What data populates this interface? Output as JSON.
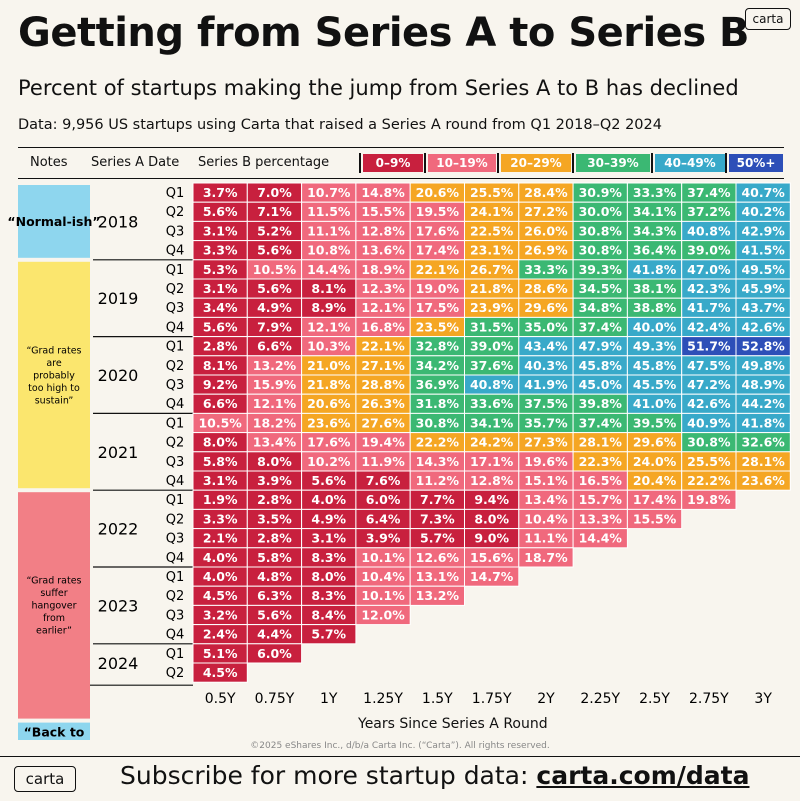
{
  "header": {
    "title": "Getting from Series A to Series B",
    "subtitle": "Percent of startups making the jump from Series A to B has declined",
    "data_note": "Data: 9,956 US startups using Carta that raised a Series A round from Q1 2018–Q2 2024",
    "logo": "carta"
  },
  "table_header": {
    "notes": "Notes",
    "series_a_date": "Series A Date",
    "series_b_percentage": "Series B percentage"
  },
  "colors": {
    "0-9": "#c8203e",
    "10-19": "#f0697d",
    "20-29": "#f5a623",
    "30-39": "#3bb873",
    "40-49": "#38a9c9",
    "50+": "#2d4fb8",
    "yellow_note": "#fbe66e",
    "blue_note": "#8ed6ee",
    "pink_note": "#f27f86"
  },
  "chart_data": {
    "type": "heatmap",
    "title": "Getting from Series A to Series B",
    "x_title": "Years Since Series A Round",
    "x_labels": [
      "0.5Y",
      "0.75Y",
      "1Y",
      "1.25Y",
      "1.5Y",
      "1.75Y",
      "2Y",
      "2.25Y",
      "2.5Y",
      "2.75Y",
      "3Y"
    ],
    "legend": [
      {
        "label": "0–9%",
        "color": "#c8203e"
      },
      {
        "label": "10–19%",
        "color": "#f0697d"
      },
      {
        "label": "20–29%",
        "color": "#f5a623"
      },
      {
        "label": "30–39%",
        "color": "#3bb873"
      },
      {
        "label": "40–49%",
        "color": "#38a9c9"
      },
      {
        "label": "50%+",
        "color": "#2d4fb8"
      }
    ],
    "years": [
      {
        "year": "2018",
        "rows": [
          {
            "q": "Q1",
            "values": [
              3.7,
              7.0,
              10.7,
              14.8,
              20.6,
              25.5,
              28.4,
              30.9,
              33.3,
              37.4,
              40.7
            ]
          },
          {
            "q": "Q2",
            "values": [
              5.6,
              7.1,
              11.5,
              15.5,
              19.5,
              24.1,
              27.2,
              30.0,
              34.1,
              37.2,
              40.2
            ]
          },
          {
            "q": "Q3",
            "values": [
              3.1,
              5.2,
              11.1,
              12.8,
              17.6,
              22.5,
              26.0,
              30.8,
              34.3,
              40.8,
              42.9
            ]
          },
          {
            "q": "Q4",
            "values": [
              3.3,
              5.6,
              10.8,
              13.6,
              17.4,
              23.1,
              26.9,
              30.8,
              36.4,
              39.0,
              41.5
            ]
          }
        ]
      },
      {
        "year": "2019",
        "rows": [
          {
            "q": "Q1",
            "values": [
              5.3,
              10.5,
              14.4,
              18.9,
              22.1,
              26.7,
              33.3,
              39.3,
              41.8,
              47.0,
              49.5
            ]
          },
          {
            "q": "Q2",
            "values": [
              3.1,
              5.6,
              8.1,
              12.3,
              19.0,
              21.8,
              28.6,
              34.5,
              38.1,
              42.3,
              45.9
            ]
          },
          {
            "q": "Q3",
            "values": [
              3.4,
              4.9,
              8.9,
              12.1,
              17.5,
              23.9,
              29.6,
              34.8,
              38.8,
              41.7,
              43.7
            ]
          },
          {
            "q": "Q4",
            "values": [
              5.6,
              7.9,
              12.1,
              16.8,
              23.5,
              31.5,
              35.0,
              37.4,
              40.0,
              42.4,
              42.6
            ]
          }
        ]
      },
      {
        "year": "2020",
        "rows": [
          {
            "q": "Q1",
            "values": [
              2.8,
              6.6,
              10.3,
              22.1,
              32.8,
              39.0,
              43.4,
              47.9,
              49.3,
              51.7,
              52.8
            ]
          },
          {
            "q": "Q2",
            "values": [
              8.1,
              13.2,
              21.0,
              27.1,
              34.2,
              37.6,
              40.3,
              45.8,
              45.8,
              47.5,
              49.8
            ]
          },
          {
            "q": "Q3",
            "values": [
              9.2,
              15.9,
              21.8,
              28.8,
              36.9,
              40.8,
              41.9,
              45.0,
              45.5,
              47.2,
              48.9
            ]
          },
          {
            "q": "Q4",
            "values": [
              6.6,
              12.1,
              20.6,
              26.3,
              31.8,
              33.6,
              37.5,
              39.8,
              41.0,
              42.6,
              44.2
            ]
          }
        ]
      },
      {
        "year": "2021",
        "rows": [
          {
            "q": "Q1",
            "values": [
              10.5,
              18.2,
              23.6,
              27.6,
              30.8,
              34.1,
              35.7,
              37.4,
              39.5,
              40.9,
              41.8
            ]
          },
          {
            "q": "Q2",
            "values": [
              8.0,
              13.4,
              17.6,
              19.4,
              22.2,
              24.2,
              27.3,
              28.1,
              29.6,
              30.8,
              32.6
            ]
          },
          {
            "q": "Q3",
            "values": [
              5.8,
              8.0,
              10.2,
              11.9,
              14.3,
              17.1,
              19.6,
              22.3,
              24.0,
              25.5,
              28.1
            ]
          },
          {
            "q": "Q4",
            "values": [
              3.1,
              3.9,
              5.6,
              7.6,
              11.2,
              12.8,
              15.1,
              16.5,
              20.4,
              22.2,
              23.6
            ]
          }
        ]
      },
      {
        "year": "2022",
        "rows": [
          {
            "q": "Q1",
            "values": [
              1.9,
              2.8,
              4.0,
              6.0,
              7.7,
              9.4,
              13.4,
              15.7,
              17.4,
              19.8
            ]
          },
          {
            "q": "Q2",
            "values": [
              3.3,
              3.5,
              4.9,
              6.4,
              7.3,
              8.0,
              10.4,
              13.3,
              15.5
            ]
          },
          {
            "q": "Q3",
            "values": [
              2.1,
              2.8,
              3.1,
              3.9,
              5.7,
              9.0,
              11.1,
              14.4
            ]
          },
          {
            "q": "Q4",
            "values": [
              4.0,
              5.8,
              8.3,
              10.1,
              12.6,
              15.6,
              18.7
            ]
          }
        ]
      },
      {
        "year": "2023",
        "rows": [
          {
            "q": "Q1",
            "values": [
              4.0,
              4.8,
              8.0,
              10.4,
              13.1,
              14.7
            ]
          },
          {
            "q": "Q2",
            "values": [
              4.5,
              6.3,
              8.3,
              10.1,
              13.2
            ]
          },
          {
            "q": "Q3",
            "values": [
              3.2,
              5.6,
              8.4,
              12.0
            ]
          },
          {
            "q": "Q4",
            "values": [
              2.4,
              4.4,
              5.7
            ]
          }
        ]
      },
      {
        "year": "2024",
        "rows": [
          {
            "q": "Q1",
            "values": [
              5.1,
              6.0
            ]
          },
          {
            "q": "Q2",
            "values": [
              4.5
            ]
          }
        ]
      }
    ],
    "notes": [
      {
        "text": "“Normal-ish”",
        "color": "#8ed6ee",
        "style": "bold"
      },
      {
        "text": "“Grad rates are probably too high to sustain”",
        "color": "#fbe66e",
        "style": "small"
      },
      {
        "text": "“Grad rates suffer hangover from earlier”",
        "color": "#f27f86",
        "style": "small"
      },
      {
        "text": "“Back to Normal?”",
        "color": "#8ed6ee",
        "style": "bold"
      }
    ]
  },
  "footer": {
    "logo": "carta",
    "subscribe_text": "Subscribe for more startup data: ",
    "subscribe_link": "carta.com/data",
    "copyright": "©2025 eShares Inc., d/b/a Carta Inc. (“Carta”). All rights reserved."
  }
}
